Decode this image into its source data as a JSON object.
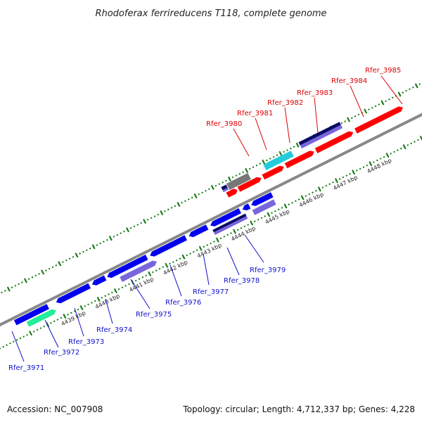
{
  "title": "Rhodoferax ferrireducens T118, complete genome",
  "accession": "Accession: NC_007908",
  "topology": "Topology: circular; Length: 4,712,337 bp; Genes: 4,228",
  "kbp_labels": [
    "4439 kbp",
    "4440 kbp",
    "4441 kbp",
    "4442 kbp",
    "4443 kbp",
    "4444 kbp",
    "4445 kbp",
    "4446 kbp",
    "4447 kbp",
    "4448 kbp"
  ],
  "top_genes": [
    "Rfer_3980",
    "Rfer_3981",
    "Rfer_3982",
    "Rfer_3983",
    "Rfer_3984",
    "Rfer_3985"
  ],
  "bottom_genes": [
    "Rfer_3971",
    "Rfer_3972",
    "Rfer_3973",
    "Rfer_3974",
    "Rfer_3975",
    "Rfer_3976",
    "Rfer_3977",
    "Rfer_3978",
    "Rfer_3979"
  ],
  "colors": {
    "forward": "#ff0000",
    "reverse": "#0000ee",
    "reverse_light": "#7766dd",
    "dark_navy": "#0b0b66",
    "cyan": "#22ccdd",
    "gray": "#777777",
    "teal": "#22ee99",
    "tick": "#117711",
    "backbone": "#888888",
    "top_label": "#dd0000",
    "bottom_label": "#1010cc"
  }
}
